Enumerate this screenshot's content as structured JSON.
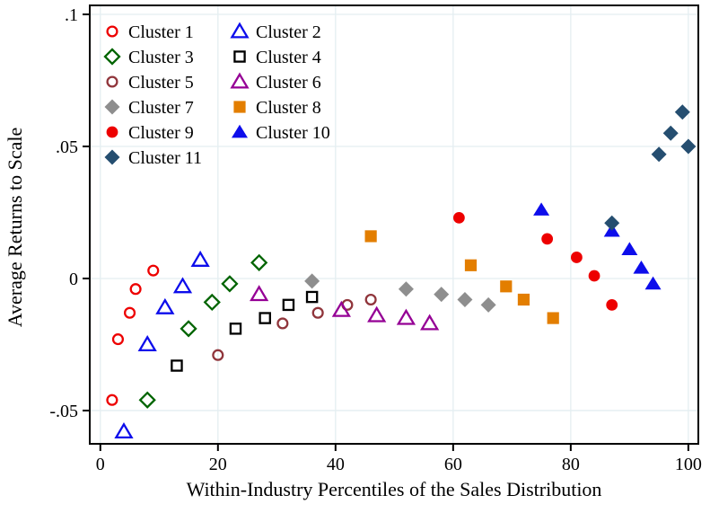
{
  "chart_data": {
    "type": "scatter",
    "title": "",
    "xlabel": "Within-Industry Percentiles of the Sales Distribution",
    "ylabel": "Average Returns to Scale",
    "xlim": [
      -1.8,
      101.7
    ],
    "ylim": [
      -0.0626,
      0.1034
    ],
    "grid": true,
    "grid_color": "#e4eef1",
    "axis_color": "#000000",
    "legend_position": "top-left-inside",
    "x_ticks": [
      0,
      20,
      40,
      60,
      80,
      100
    ],
    "x_tick_labels": [
      "0",
      "20",
      "40",
      "60",
      "80",
      "100"
    ],
    "y_ticks": [
      0.1,
      0.05,
      0,
      -0.05
    ],
    "y_tick_labels": [
      ".1",
      ".05",
      "0",
      "-.05"
    ],
    "series": [
      {
        "name": "Cluster 1",
        "marker": "circle",
        "fill": "hollow",
        "color": "#ed0000",
        "points": [
          [
            2,
            -0.046
          ],
          [
            3,
            -0.023
          ],
          [
            5,
            -0.013
          ],
          [
            6,
            -0.004
          ],
          [
            9,
            0.003
          ]
        ]
      },
      {
        "name": "Cluster 2",
        "marker": "triangle",
        "fill": "hollow",
        "color": "#0d0deb",
        "points": [
          [
            4,
            -0.058
          ],
          [
            8,
            -0.025
          ],
          [
            11,
            -0.011
          ],
          [
            14,
            -0.003
          ],
          [
            17,
            0.007
          ]
        ]
      },
      {
        "name": "Cluster 3",
        "marker": "diamond",
        "fill": "hollow",
        "color": "#006400",
        "points": [
          [
            8,
            -0.046
          ],
          [
            15,
            -0.019
          ],
          [
            19,
            -0.009
          ],
          [
            22,
            -0.002
          ],
          [
            27,
            0.006
          ]
        ]
      },
      {
        "name": "Cluster 4",
        "marker": "square",
        "fill": "hollow",
        "color": "#000000",
        "points": [
          [
            13,
            -0.033
          ],
          [
            23,
            -0.019
          ],
          [
            28,
            -0.015
          ],
          [
            32,
            -0.01
          ],
          [
            36,
            -0.007
          ]
        ]
      },
      {
        "name": "Cluster 5",
        "marker": "circle",
        "fill": "hollow",
        "color": "#90353b",
        "points": [
          [
            20,
            -0.029
          ],
          [
            31,
            -0.017
          ],
          [
            37,
            -0.013
          ],
          [
            42,
            -0.01
          ],
          [
            46,
            -0.008
          ]
        ]
      },
      {
        "name": "Cluster 6",
        "marker": "triangle",
        "fill": "hollow",
        "color": "#950095",
        "points": [
          [
            27,
            -0.006
          ],
          [
            41,
            -0.012
          ],
          [
            47,
            -0.014
          ],
          [
            52,
            -0.015
          ],
          [
            56,
            -0.017
          ]
        ]
      },
      {
        "name": "Cluster 7",
        "marker": "diamond",
        "fill": "solid",
        "color": "#8e8e8e",
        "points": [
          [
            36,
            -0.001
          ],
          [
            52,
            -0.004
          ],
          [
            58,
            -0.006
          ],
          [
            62,
            -0.008
          ],
          [
            66,
            -0.01
          ]
        ]
      },
      {
        "name": "Cluster 8",
        "marker": "square",
        "fill": "solid",
        "color": "#e37e00",
        "points": [
          [
            46,
            0.016
          ],
          [
            63,
            0.005
          ],
          [
            69,
            -0.003
          ],
          [
            72,
            -0.008
          ],
          [
            77,
            -0.015
          ]
        ]
      },
      {
        "name": "Cluster 9",
        "marker": "circle",
        "fill": "solid",
        "color": "#ed0000",
        "points": [
          [
            61,
            0.023
          ],
          [
            76,
            0.015
          ],
          [
            81,
            0.008
          ],
          [
            84,
            0.001
          ],
          [
            87,
            -0.01
          ]
        ]
      },
      {
        "name": "Cluster 10",
        "marker": "triangle",
        "fill": "solid",
        "color": "#0d0deb",
        "points": [
          [
            75,
            0.026
          ],
          [
            87,
            0.018
          ],
          [
            90,
            0.011
          ],
          [
            92,
            0.004
          ],
          [
            94,
            -0.002
          ]
        ]
      },
      {
        "name": "Cluster 11",
        "marker": "diamond",
        "fill": "solid",
        "color": "#254e70",
        "points": [
          [
            87,
            0.021
          ],
          [
            95,
            0.047
          ],
          [
            97,
            0.055
          ],
          [
            99,
            0.063
          ],
          [
            100,
            0.05
          ]
        ]
      }
    ]
  }
}
